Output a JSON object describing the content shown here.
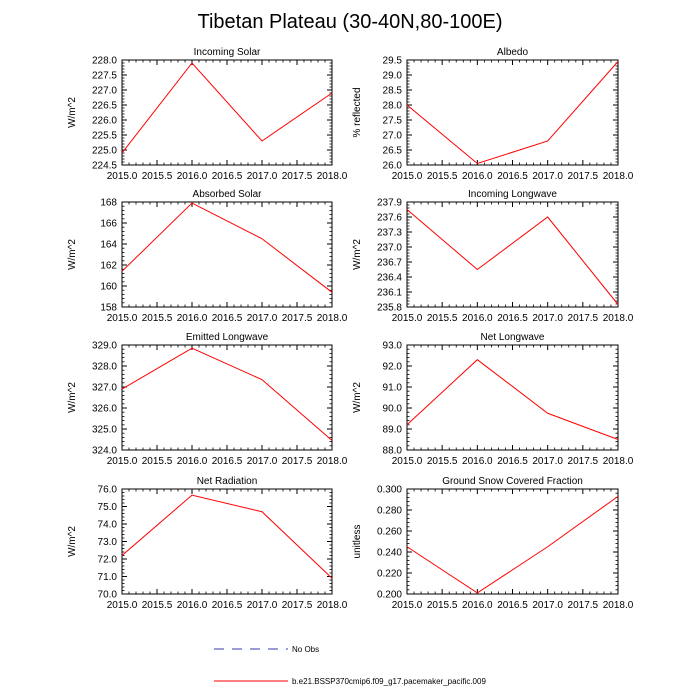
{
  "figure": {
    "title": "Tibetan Plateau (30-40N,80-100E)"
  },
  "legend": {
    "obs_label": "No Obs",
    "model_label": "b.e21.BSSP370cmip6.f09_g17.pacemaker_pacific.009",
    "obs_color": "#3a3aa8",
    "model_color": "#ff0000"
  },
  "chart_data": [
    {
      "type": "line",
      "title": "Incoming Solar",
      "ylabel": "W/m^2",
      "x": [
        2015,
        2016,
        2017,
        2018
      ],
      "values": [
        224.9,
        227.9,
        225.3,
        226.9
      ],
      "xlim": [
        2015,
        2018
      ],
      "ylim": [
        224.5,
        228.0
      ],
      "xticks": [
        "2015.0",
        "2015.5",
        "2016.0",
        "2016.5",
        "2017.0",
        "2017.5",
        "2018.0"
      ],
      "yticks": [
        "224.5",
        "225.0",
        "225.5",
        "226.0",
        "226.5",
        "227.0",
        "227.5",
        "228.0"
      ],
      "color": "#ff0000"
    },
    {
      "type": "line",
      "title": "Albedo",
      "ylabel": "% reflected",
      "x": [
        2015,
        2016,
        2017,
        2018
      ],
      "values": [
        28.0,
        26.05,
        26.8,
        29.45
      ],
      "xlim": [
        2015,
        2018
      ],
      "ylim": [
        26.0,
        29.5
      ],
      "xticks": [
        "2015.0",
        "2015.5",
        "2016.0",
        "2016.5",
        "2017.0",
        "2017.5",
        "2018.0"
      ],
      "yticks": [
        "26.0",
        "26.5",
        "27.0",
        "27.5",
        "28.0",
        "28.5",
        "29.0",
        "29.5"
      ],
      "color": "#ff0000"
    },
    {
      "type": "line",
      "title": "Absorbed Solar",
      "ylabel": "W/m^2",
      "x": [
        2015,
        2016,
        2017,
        2018
      ],
      "values": [
        161.4,
        167.9,
        164.5,
        159.4
      ],
      "xlim": [
        2015,
        2018
      ],
      "ylim": [
        158,
        168
      ],
      "xticks": [
        "2015.0",
        "2015.5",
        "2016.0",
        "2016.5",
        "2017.0",
        "2017.5",
        "2018.0"
      ],
      "yticks": [
        "158",
        "160",
        "162",
        "164",
        "166",
        "168"
      ],
      "color": "#ff0000"
    },
    {
      "type": "line",
      "title": "Incoming Longwave",
      "ylabel": "W/m^2",
      "x": [
        2015,
        2016,
        2017,
        2018
      ],
      "values": [
        237.75,
        236.55,
        237.6,
        235.85
      ],
      "xlim": [
        2015,
        2018
      ],
      "ylim": [
        235.8,
        237.9
      ],
      "xticks": [
        "2015.0",
        "2015.5",
        "2016.0",
        "2016.5",
        "2017.0",
        "2017.5",
        "2018.0"
      ],
      "yticks": [
        "235.8",
        "236.1",
        "236.4",
        "236.7",
        "237.0",
        "237.3",
        "237.6",
        "237.9"
      ],
      "color": "#ff0000"
    },
    {
      "type": "line",
      "title": "Emitted Longwave",
      "ylabel": "W/m^2",
      "x": [
        2015,
        2016,
        2017,
        2018
      ],
      "values": [
        326.9,
        328.85,
        327.35,
        324.45
      ],
      "xlim": [
        2015,
        2018
      ],
      "ylim": [
        324.0,
        329.0
      ],
      "xticks": [
        "2015.0",
        "2015.5",
        "2016.0",
        "2016.5",
        "2017.0",
        "2017.5",
        "2018.0"
      ],
      "yticks": [
        "324.0",
        "325.0",
        "326.0",
        "327.0",
        "328.0",
        "329.0"
      ],
      "color": "#ff0000"
    },
    {
      "type": "line",
      "title": "Net Longwave",
      "ylabel": "W/m^2",
      "x": [
        2015,
        2016,
        2017,
        2018
      ],
      "values": [
        89.2,
        92.3,
        89.75,
        88.5
      ],
      "xlim": [
        2015,
        2018
      ],
      "ylim": [
        88.0,
        93.0
      ],
      "xticks": [
        "2015.0",
        "2015.5",
        "2016.0",
        "2016.5",
        "2017.0",
        "2017.5",
        "2018.0"
      ],
      "yticks": [
        "88.0",
        "89.0",
        "90.0",
        "91.0",
        "92.0",
        "93.0"
      ],
      "color": "#ff0000"
    },
    {
      "type": "line",
      "title": "Net Radiation",
      "ylabel": "W/m^2",
      "x": [
        2015,
        2016,
        2017,
        2018
      ],
      "values": [
        72.2,
        75.65,
        74.7,
        70.9
      ],
      "xlim": [
        2015,
        2018
      ],
      "ylim": [
        70.0,
        76.0
      ],
      "xticks": [
        "2015.0",
        "2015.5",
        "2016.0",
        "2016.5",
        "2017.0",
        "2017.5",
        "2018.0"
      ],
      "yticks": [
        "70.0",
        "71.0",
        "72.0",
        "73.0",
        "74.0",
        "75.0",
        "76.0"
      ],
      "color": "#ff0000"
    },
    {
      "type": "line",
      "title": "Ground Snow Covered Fraction",
      "ylabel": "unitless",
      "x": [
        2015,
        2016,
        2017,
        2018
      ],
      "values": [
        0.245,
        0.201,
        0.245,
        0.293
      ],
      "xlim": [
        2015,
        2018
      ],
      "ylim": [
        0.2,
        0.3
      ],
      "xticks": [
        "2015.0",
        "2015.5",
        "2016.0",
        "2016.5",
        "2017.0",
        "2017.5",
        "2018.0"
      ],
      "yticks": [
        "0.200",
        "0.220",
        "0.240",
        "0.260",
        "0.280",
        "0.300"
      ],
      "color": "#ff0000"
    }
  ]
}
